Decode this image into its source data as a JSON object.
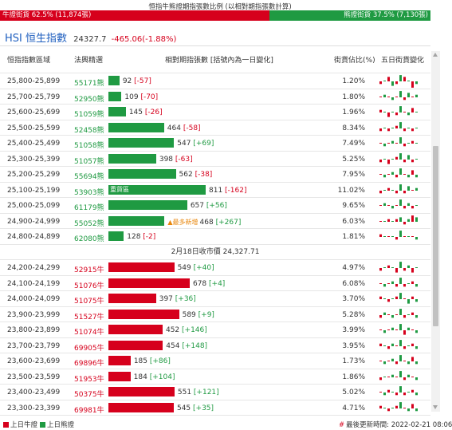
{
  "header": {
    "title": "恒指牛熊證期指張數比例 (以相對期指張數計算)",
    "bull_label": "牛證街貨 62.5% (11,874張)",
    "bear_label": "熊證街貨 37.5% (7,130張)",
    "bull_ratio": 0.625
  },
  "index": {
    "name": "HSI 恒生指數",
    "value": "24327.7",
    "change": "-465.06(-1.88%)"
  },
  "columns": {
    "range": "恒指指數區域",
    "code": "法興精選",
    "contracts": "相對期指張數 [括號內為一日變化]",
    "pct": "街貨佔比(%)",
    "trend": "五日街貨變化"
  },
  "scale_max": 811,
  "colors": {
    "bull": "#d6001c",
    "bear": "#1f9a42"
  },
  "bear_rows": [
    {
      "range": "",
      "code": "",
      "value": 0,
      "change": "",
      "pct": "",
      "pattern": [
        0,
        0,
        0,
        0,
        0,
        0,
        0,
        0,
        0,
        0
      ]
    },
    {
      "range": "25,800-25,899",
      "code": "55171熊",
      "value": 92,
      "change": "[-57]",
      "pct": "1.20%",
      "pattern": [
        -1,
        0,
        2,
        -2,
        -1,
        3,
        2,
        0,
        -3,
        -1
      ]
    },
    {
      "range": "25,700-25,799",
      "code": "52950熊",
      "value": 109,
      "change": "[-70]",
      "pct": "1.80%",
      "pattern": [
        0,
        1,
        0,
        -1,
        0,
        3,
        -1,
        2,
        0,
        1
      ]
    },
    {
      "range": "25,600-25,699",
      "code": "51059熊",
      "value": 145,
      "change": "[-26]",
      "pct": "1.96%",
      "pattern": [
        1,
        0,
        -2,
        0,
        -1,
        3,
        0,
        -1,
        2,
        0
      ]
    },
    {
      "range": "25,500-25,599",
      "code": "52458熊",
      "value": 464,
      "change": "[-58]",
      "pct": "8.34%",
      "pattern": [
        -1,
        0,
        -1,
        0,
        1,
        3,
        -1,
        0,
        -1,
        0
      ]
    },
    {
      "range": "25,400-25,499",
      "code": "51058熊",
      "value": 547,
      "change": "[+69]",
      "pct": "7.49%",
      "pattern": [
        0,
        -1,
        0,
        1,
        0,
        3,
        -1,
        0,
        1,
        0
      ]
    },
    {
      "range": "25,300-25,399",
      "code": "51057熊",
      "value": 398,
      "change": "[-63]",
      "pct": "5.25%",
      "pattern": [
        -1,
        0,
        -2,
        0,
        1,
        3,
        -1,
        2,
        -1,
        0
      ]
    },
    {
      "range": "25,200-25,299",
      "code": "55694熊",
      "value": 562,
      "change": "[-38]",
      "pct": "7.95%",
      "pattern": [
        0,
        -1,
        0,
        1,
        -1,
        3,
        0,
        -1,
        2,
        -1
      ]
    },
    {
      "range": "25,100-25,199",
      "code": "53903熊",
      "value": 811,
      "change": "[-162]",
      "pct": "11.02%",
      "tag": "重貨區",
      "pattern": [
        -1,
        0,
        1,
        0,
        -1,
        3,
        -1,
        2,
        0,
        1
      ]
    },
    {
      "range": "25,000-25,099",
      "code": "61179熊",
      "value": 657,
      "change": "[+56]",
      "pct": "9.65%",
      "pattern": [
        0,
        1,
        0,
        -1,
        0,
        3,
        -1,
        1,
        -1,
        0
      ]
    },
    {
      "range": "24,900-24,999",
      "code": "55052熊",
      "value": 468,
      "change": "[+267]",
      "pct": "6.03%",
      "note": "▲最多新增",
      "pattern": [
        0,
        0,
        1,
        0,
        1,
        2,
        -1,
        1,
        3,
        2
      ]
    },
    {
      "range": "24,800-24,899",
      "code": "62080熊",
      "value": 128,
      "change": "[-2]",
      "pct": "1.81%",
      "pattern": [
        1,
        0,
        0,
        0,
        -1,
        3,
        0,
        0,
        0,
        -1
      ]
    }
  ],
  "close_label": "2月18日收市價 24,327.71",
  "bull_rows": [
    {
      "range": "24,200-24,299",
      "code": "52915牛",
      "value": 549,
      "change": "[+40]",
      "pct": "4.97%",
      "pattern": [
        -1,
        0,
        1,
        0,
        -2,
        3,
        -1,
        1,
        -2,
        0
      ]
    },
    {
      "range": "24,100-24,199",
      "code": "51076牛",
      "value": 678,
      "change": "[+4]",
      "pct": "6.08%",
      "pattern": [
        0,
        -1,
        0,
        1,
        -1,
        3,
        -1,
        0,
        1,
        -1
      ]
    },
    {
      "range": "24,000-24,099",
      "code": "51075牛",
      "value": 397,
      "change": "[+36]",
      "pct": "3.70%",
      "pattern": [
        1,
        0,
        -1,
        0,
        1,
        3,
        0,
        -2,
        1,
        -1
      ]
    },
    {
      "range": "23,900-23,999",
      "code": "51527牛",
      "value": 589,
      "change": "[+9]",
      "pct": "5.28%",
      "pattern": [
        -1,
        1,
        0,
        -1,
        0,
        3,
        -1,
        0,
        1,
        -1
      ]
    },
    {
      "range": "23,800-23,899",
      "code": "51074牛",
      "value": 452,
      "change": "[+146]",
      "pct": "3.99%",
      "pattern": [
        0,
        -1,
        0,
        1,
        0,
        3,
        -2,
        1,
        0,
        -1
      ]
    },
    {
      "range": "23,700-23,799",
      "code": "69905牛",
      "value": 454,
      "change": "[+148]",
      "pct": "3.95%",
      "pattern": [
        1,
        0,
        -1,
        1,
        0,
        3,
        -1,
        0,
        1,
        -1
      ]
    },
    {
      "range": "23,600-23,699",
      "code": "69896牛",
      "value": 185,
      "change": "[+86]",
      "pct": "1.73%",
      "pattern": [
        0,
        -1,
        0,
        1,
        -1,
        3,
        0,
        -1,
        2,
        -1
      ]
    },
    {
      "range": "23,500-23,599",
      "code": "51953牛",
      "value": 184,
      "change": "[+104]",
      "pct": "1.86%",
      "pattern": [
        -1,
        0,
        0,
        1,
        0,
        3,
        -1,
        1,
        0,
        -1
      ]
    },
    {
      "range": "23,400-23,499",
      "code": "50375牛",
      "value": 551,
      "change": "[+121]",
      "pct": "5.02%",
      "pattern": [
        0,
        -1,
        1,
        0,
        -1,
        3,
        -1,
        0,
        1,
        -1
      ]
    },
    {
      "range": "23,300-23,399",
      "code": "69981牛",
      "value": 545,
      "change": "[+35]",
      "pct": "4.71%",
      "pattern": [
        1,
        0,
        -1,
        0,
        1,
        3,
        0,
        -1,
        2,
        -1
      ]
    }
  ],
  "footer": {
    "bull_legend": "上日牛證",
    "bear_legend": "上日熊證",
    "update_label": "最後更新時間: 2022-02-21 08:06",
    "update_icon": "#"
  }
}
